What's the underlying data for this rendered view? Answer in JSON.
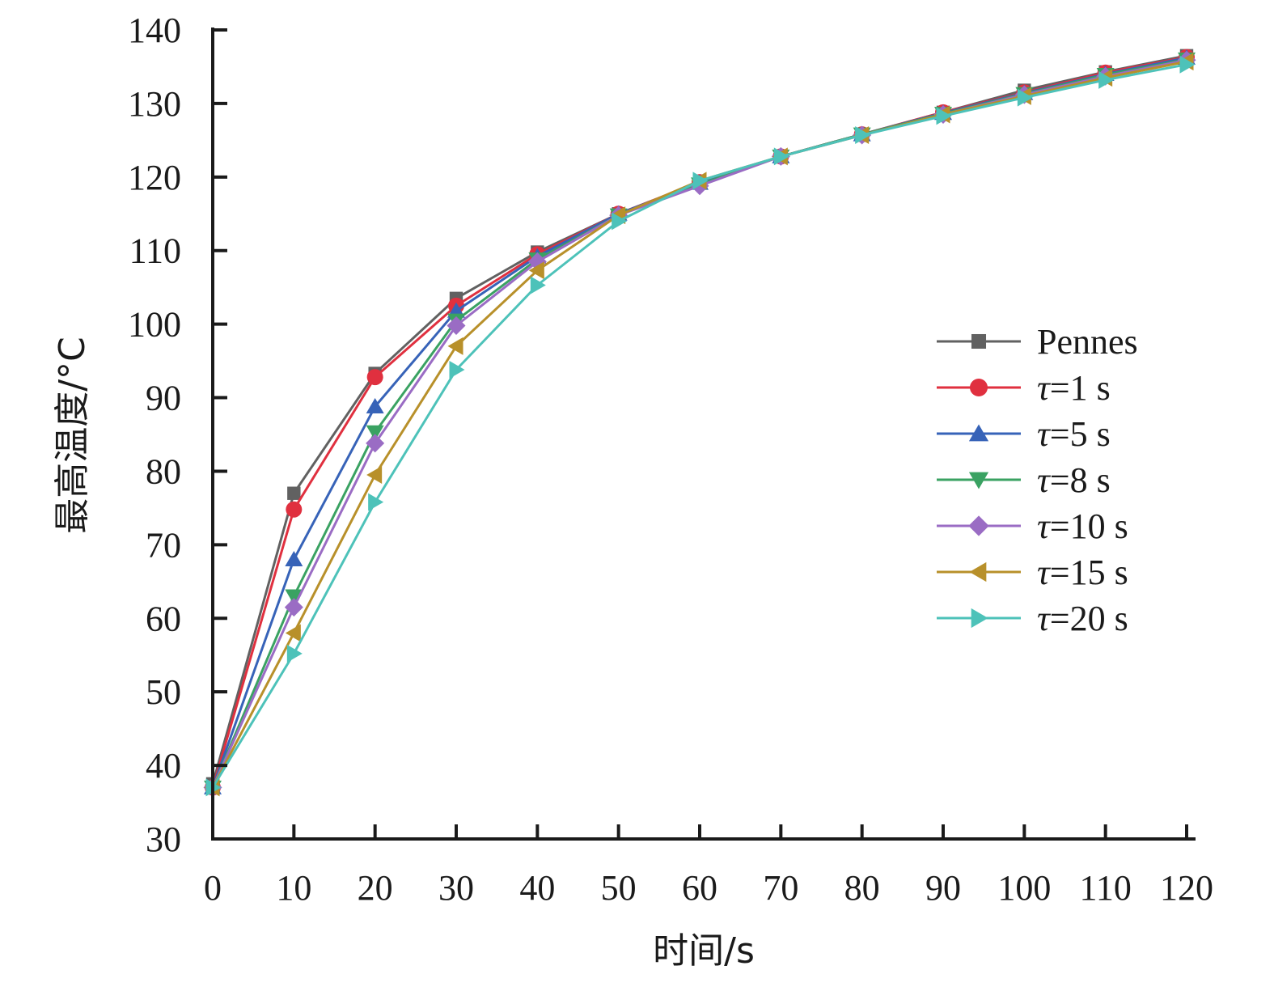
{
  "chart_data": {
    "type": "line",
    "title": "",
    "xlabel": "时间/s",
    "ylabel": "最高温度/°C",
    "xlim": [
      0,
      120
    ],
    "ylim": [
      30,
      140
    ],
    "x": [
      0,
      10,
      20,
      30,
      40,
      50,
      60,
      70,
      80,
      90,
      100,
      110,
      120
    ],
    "x_ticks": [
      "0",
      "10",
      "20",
      "30",
      "40",
      "50",
      "60",
      "70",
      "80",
      "90",
      "100",
      "110",
      "120"
    ],
    "y_ticks": [
      "30",
      "40",
      "50",
      "60",
      "70",
      "80",
      "90",
      "100",
      "110",
      "120",
      "130",
      "140"
    ],
    "grid": false,
    "legend_position": "right",
    "series": [
      {
        "name": "Pennes",
        "legend_prefix": "",
        "legend_text": "Pennes",
        "color": "#616161",
        "marker": "square",
        "values": [
          37.5,
          77,
          93.3,
          103.5,
          109.8,
          115,
          119.3,
          122.8,
          125.8,
          128.8,
          131.8,
          134.3,
          136.5
        ]
      },
      {
        "name": "τ=1 s",
        "legend_prefix": "τ",
        "legend_text": "=1 s",
        "color": "#e0303f",
        "marker": "circle",
        "values": [
          37,
          74.8,
          92.8,
          102.5,
          109.5,
          115,
          119.3,
          122.8,
          125.8,
          128.8,
          131.5,
          134.2,
          136.3
        ]
      },
      {
        "name": "τ=5 s",
        "legend_prefix": "τ",
        "legend_text": "=5 s",
        "color": "#3763b8",
        "marker": "triangle-up",
        "values": [
          37,
          68,
          88.8,
          101.8,
          109.2,
          115,
          119.2,
          122.8,
          125.8,
          128.7,
          131.4,
          134,
          136.2
        ]
      },
      {
        "name": "τ=8 s",
        "legend_prefix": "τ",
        "legend_text": "=8 s",
        "color": "#3aa262",
        "marker": "triangle-down",
        "values": [
          37,
          63,
          85.3,
          100.5,
          108.8,
          114.8,
          119,
          122.8,
          125.8,
          128.6,
          131.3,
          133.9,
          136
        ]
      },
      {
        "name": "τ=10 s",
        "legend_prefix": "τ",
        "legend_text": "=10 s",
        "color": "#9a6cc4",
        "marker": "diamond",
        "values": [
          37,
          61.5,
          83.8,
          99.8,
          108.5,
          114.8,
          118.8,
          122.8,
          125.7,
          128.5,
          131.2,
          133.7,
          135.9
        ]
      },
      {
        "name": "τ=15 s",
        "legend_prefix": "τ",
        "legend_text": "=15 s",
        "color": "#b8902a",
        "marker": "triangle-left",
        "values": [
          37,
          58,
          79.5,
          97,
          107.3,
          114.8,
          119.5,
          122.8,
          125.7,
          128.5,
          131,
          133.5,
          135.7
        ]
      },
      {
        "name": "τ=20 s",
        "legend_prefix": "τ",
        "legend_text": "=20 s",
        "color": "#4dc2b9",
        "marker": "triangle-right",
        "values": [
          37,
          55.2,
          75.8,
          93.8,
          105.3,
          114,
          119.5,
          122.8,
          125.7,
          128.3,
          130.8,
          133.2,
          135.3
        ]
      }
    ]
  }
}
